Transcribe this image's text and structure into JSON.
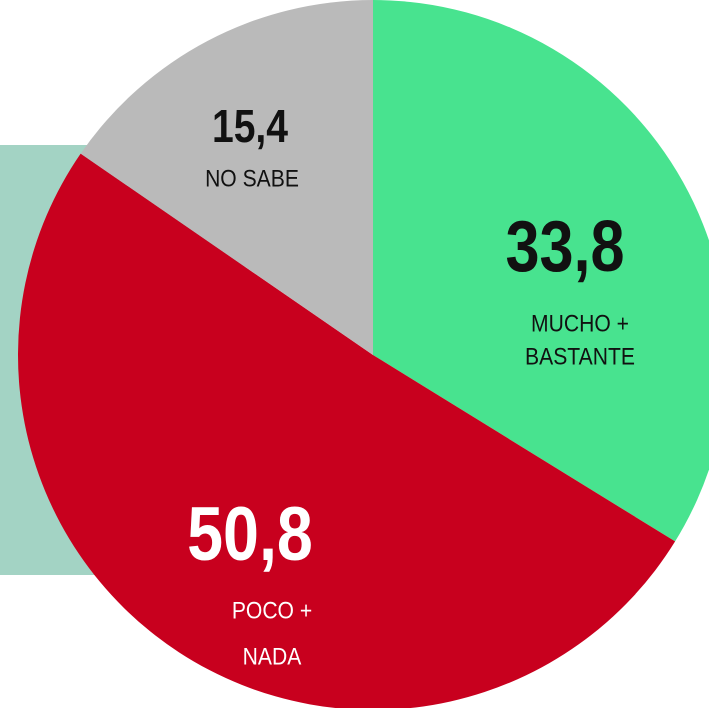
{
  "chart_data": {
    "type": "pie",
    "categories": [
      [
        "MUCHO +",
        "BASTANTE"
      ],
      [
        "POCO +",
        "NADA"
      ],
      [
        "NO SABE"
      ]
    ],
    "values": [
      33.8,
      50.8,
      15.4
    ],
    "value_labels": [
      "33,8",
      "50,8",
      "15,4"
    ],
    "colors": [
      "#48e38f",
      "#c8001e",
      "#bababa"
    ]
  }
}
